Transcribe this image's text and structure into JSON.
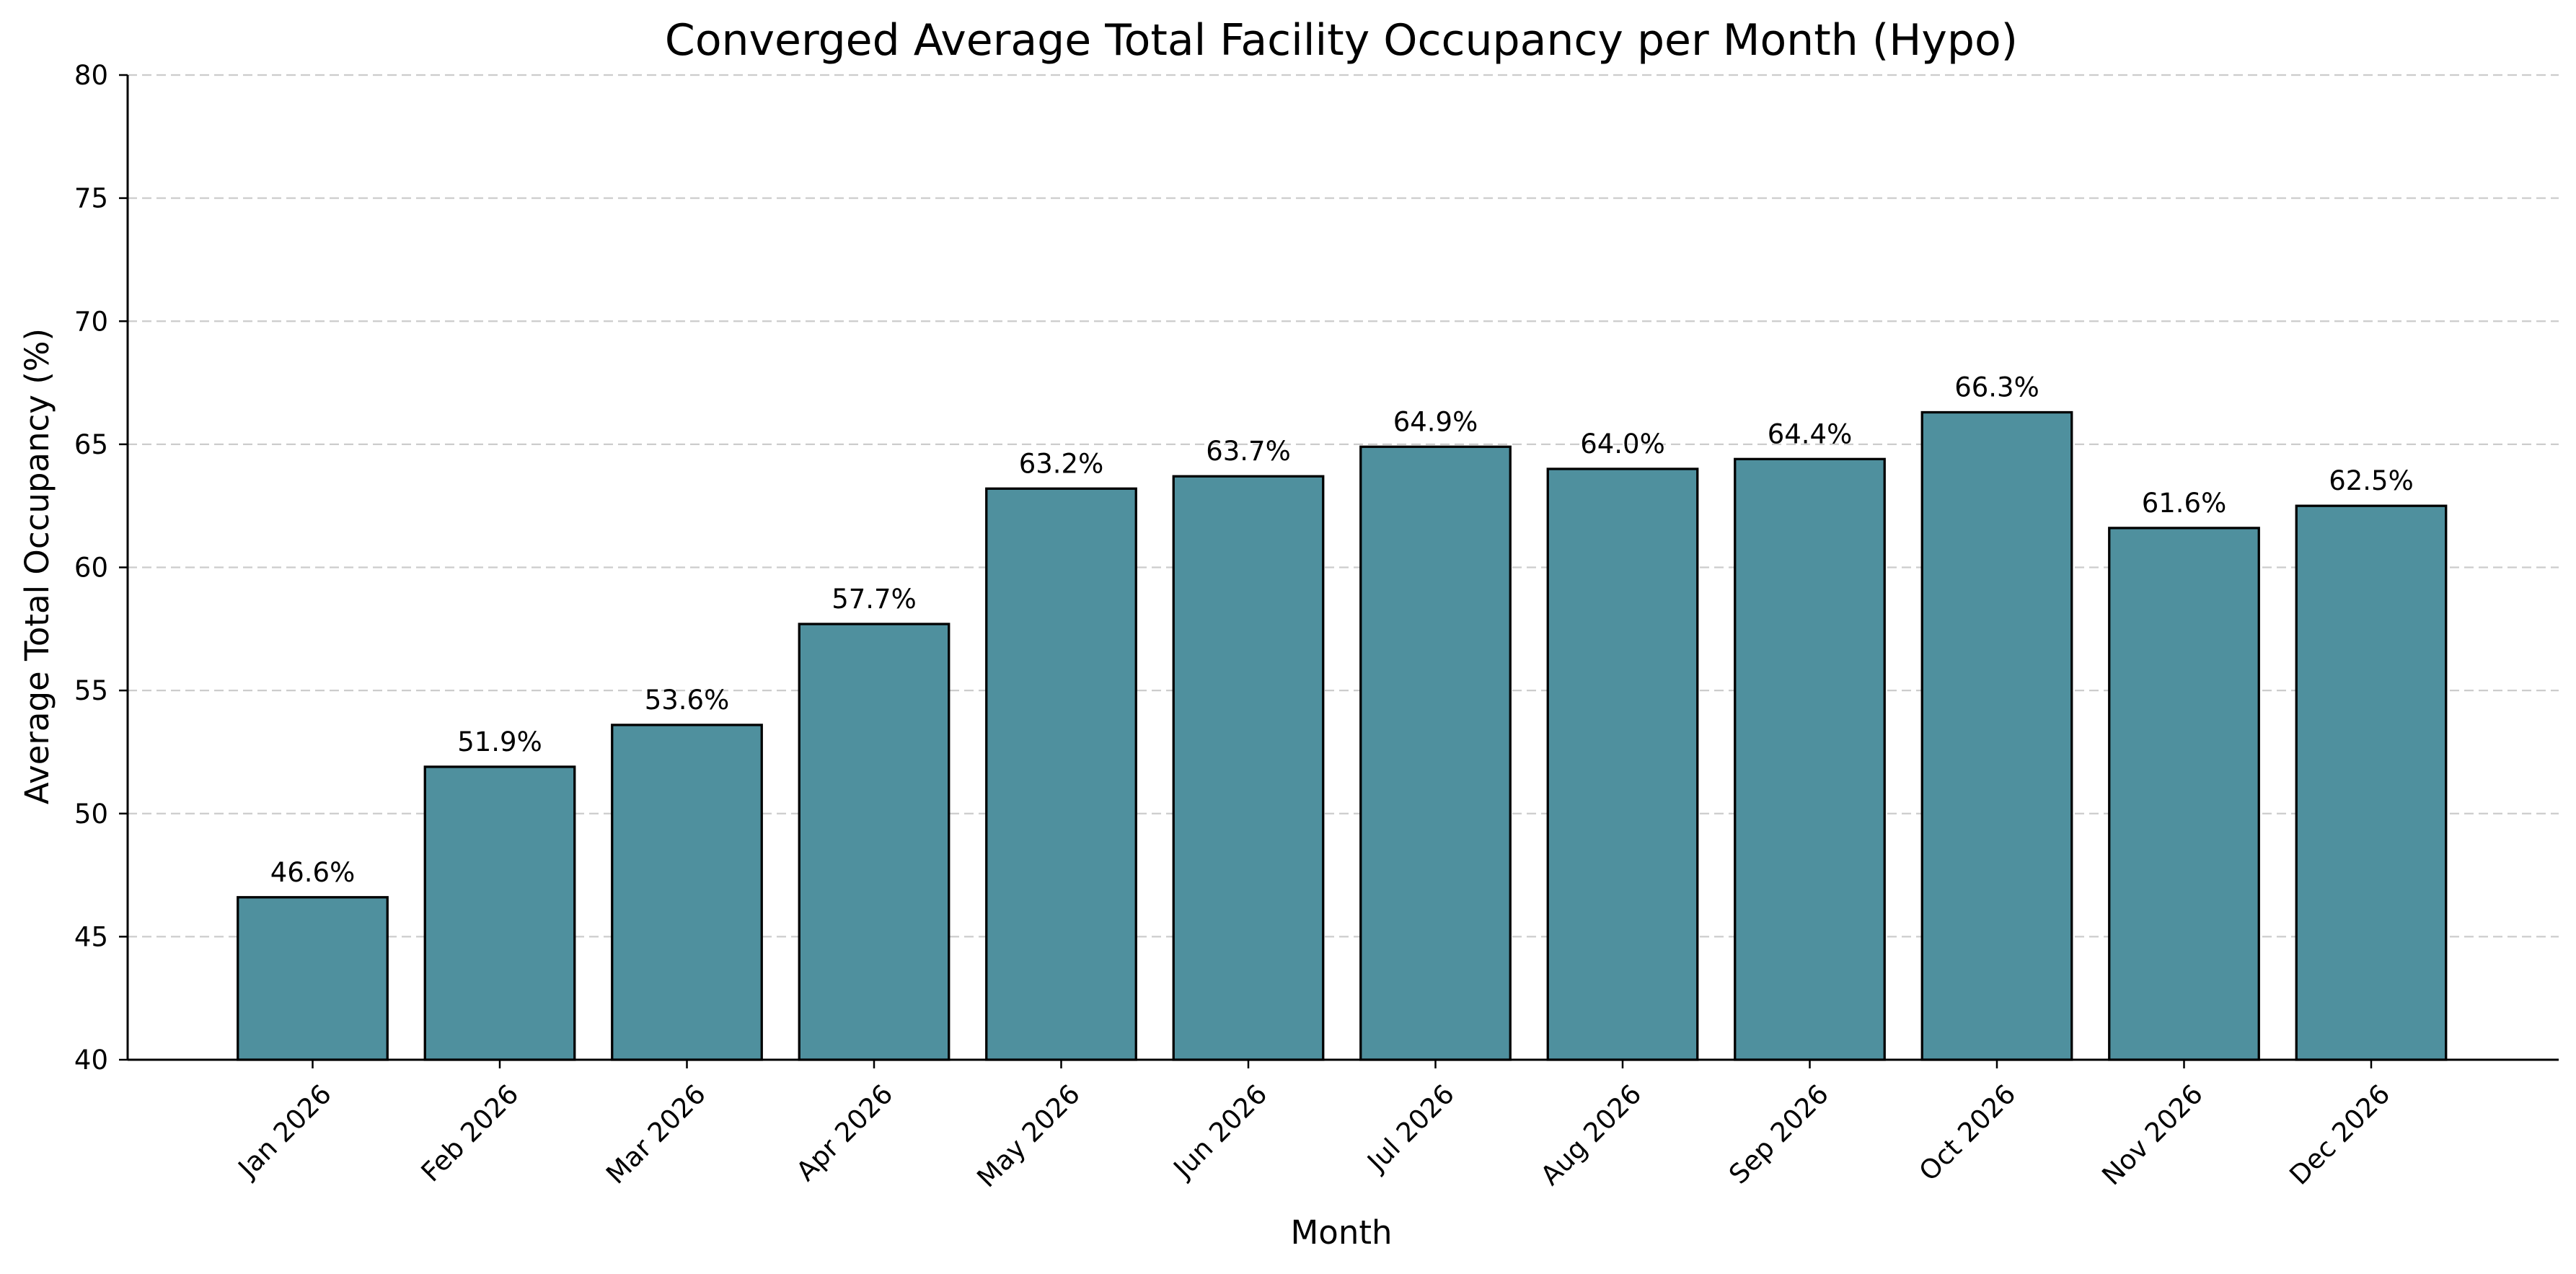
{
  "chart_data": {
    "type": "bar",
    "title": "Converged Average Total Facility Occupancy per Month (Hypo)",
    "xlabel": "Month",
    "ylabel": "Average Total Occupancy (%)",
    "categories": [
      "Jan 2026",
      "Feb 2026",
      "Mar 2026",
      "Apr 2026",
      "May 2026",
      "Jun 2026",
      "Jul 2026",
      "Aug 2026",
      "Sep 2026",
      "Oct 2026",
      "Nov 2026",
      "Dec 2026"
    ],
    "values": [
      46.6,
      51.9,
      53.6,
      57.7,
      63.2,
      63.7,
      64.9,
      64.0,
      64.4,
      66.3,
      61.6,
      62.5
    ],
    "value_labels": [
      "46.6%",
      "51.9%",
      "53.6%",
      "57.7%",
      "63.2%",
      "63.7%",
      "64.9%",
      "64.0%",
      "64.4%",
      "66.3%",
      "61.6%",
      "62.5%"
    ],
    "ylim": [
      40,
      80
    ],
    "yticks": [
      "40",
      "45",
      "50",
      "55",
      "60",
      "65",
      "70",
      "75",
      "80"
    ],
    "grid": "y-dashed",
    "bar_color": "#4f909e",
    "bar_edge_color": "#000000"
  }
}
